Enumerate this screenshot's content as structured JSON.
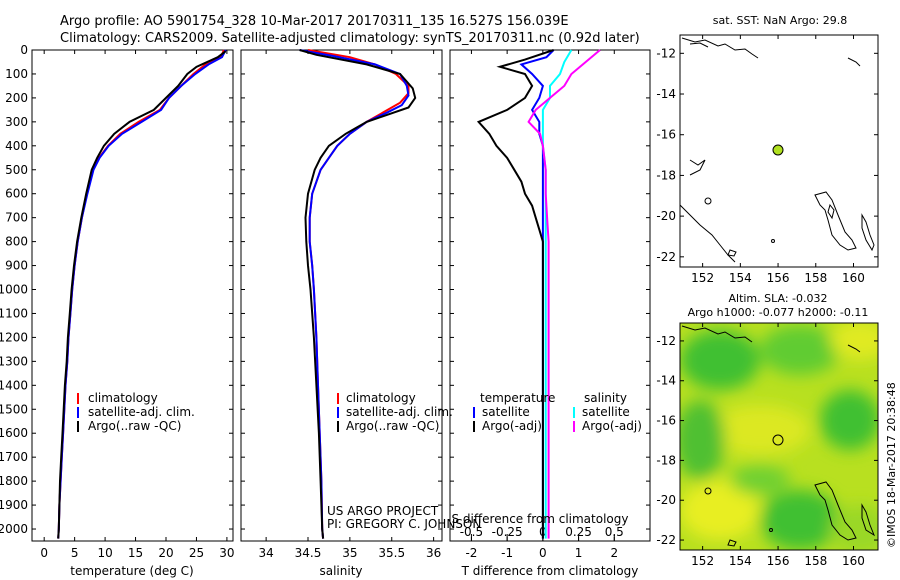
{
  "header": {
    "line1": "Argo profile: AO 5901754_328 10-Mar-2017 20170311_135 16.527S 156.039E",
    "line2": "Climatology: CARS2009. Satellite-adjusted climatology: synTS_20170311.nc (0.92d later)"
  },
  "colors": {
    "climatology": "#ff0000",
    "satellite": "#0000ff",
    "argo": "#000000",
    "satellite_diff": "#00ffff",
    "argo_adj": "#ff00ff",
    "marker": "#b0e020"
  },
  "depth_axis": {
    "range": [
      0,
      2050
    ],
    "ticks": [
      "0",
      "100",
      "200",
      "300",
      "400",
      "500",
      "600",
      "700",
      "800",
      "900",
      "1000",
      "1100",
      "1200",
      "1300",
      "1400",
      "1500",
      "1600",
      "1700",
      "1800",
      "1900",
      "2000"
    ]
  },
  "legends": {
    "climatology": "climatology",
    "satellite_adj": "satellite-adj. clim.",
    "argo_raw": "Argo(..raw -QC)",
    "temperature": "temperature",
    "salinity": "salinity",
    "satellite": "satellite",
    "argo_adj": "Argo(-adj)"
  },
  "annotations": {
    "project": "US ARGO PROJECT",
    "pi": "PI: GREGORY C. JOHNSON",
    "s_diff": "S difference from climatology",
    "t_diff": "T difference from climatology"
  },
  "maps": {
    "sst_title": "sat. SST: NaN Argo: 29.8",
    "sla_title1": "Altim. SLA: -0.032",
    "sla_title2": "Argo h1000: -0.077 h2000: -0.11",
    "lon_ticks": [
      "152",
      "154",
      "156",
      "158",
      "160"
    ],
    "lat_ticks": [
      "-12",
      "-14",
      "-16",
      "-18",
      "-20",
      "-22"
    ],
    "float_lon": 156.039,
    "float_lat": -16.527
  },
  "footer": {
    "credit": "©IMOS 18-Mar-2017 20:38:48"
  },
  "chart_data": [
    {
      "type": "line",
      "xlabel": "temperature (deg C)",
      "ylabel": "",
      "xlim": [
        -2,
        31
      ],
      "ylim": [
        2050,
        0
      ],
      "x_ticks": [
        "0",
        "5",
        "10",
        "15",
        "20",
        "25",
        "30"
      ],
      "series": [
        {
          "name": "climatology",
          "points": [
            [
              29.5,
              0
            ],
            [
              29.0,
              30
            ],
            [
              26.5,
              60
            ],
            [
              24.5,
              100
            ],
            [
              22.5,
              150
            ],
            [
              20.5,
              200
            ],
            [
              19,
              250
            ],
            [
              15.5,
              300
            ],
            [
              12.5,
              350
            ],
            [
              10.5,
              400
            ],
            [
              9,
              450
            ],
            [
              8,
              500
            ],
            [
              7,
              600
            ],
            [
              6.2,
              700
            ],
            [
              5.5,
              800
            ],
            [
              5,
              900
            ],
            [
              4.6,
              1000
            ],
            [
              4.3,
              1100
            ],
            [
              4.0,
              1200
            ],
            [
              3.8,
              1300
            ],
            [
              3.5,
              1400
            ],
            [
              3.3,
              1500
            ],
            [
              3.1,
              1600
            ],
            [
              2.9,
              1700
            ],
            [
              2.7,
              1800
            ],
            [
              2.5,
              1900
            ],
            [
              2.4,
              2000
            ],
            [
              2.3,
              2040
            ]
          ]
        },
        {
          "name": "satellite-adj. clim.",
          "points": [
            [
              29.8,
              0
            ],
            [
              29.2,
              30
            ],
            [
              27,
              60
            ],
            [
              24.8,
              100
            ],
            [
              22.5,
              150
            ],
            [
              20.5,
              200
            ],
            [
              19.2,
              250
            ],
            [
              16,
              300
            ],
            [
              12.8,
              350
            ],
            [
              10.6,
              400
            ],
            [
              9.1,
              450
            ],
            [
              8.1,
              500
            ],
            [
              7.1,
              600
            ],
            [
              6.2,
              700
            ],
            [
              5.5,
              800
            ],
            [
              5,
              900
            ],
            [
              4.6,
              1000
            ],
            [
              4.3,
              1100
            ],
            [
              4.0,
              1200
            ],
            [
              3.8,
              1300
            ],
            [
              3.5,
              1400
            ],
            [
              3.3,
              1500
            ],
            [
              3.1,
              1600
            ],
            [
              2.9,
              1700
            ],
            [
              2.7,
              1800
            ],
            [
              2.5,
              1900
            ],
            [
              2.4,
              2000
            ],
            [
              2.3,
              2040
            ]
          ]
        },
        {
          "name": "Argo(..raw -QC)",
          "points": [
            [
              29.8,
              5
            ],
            [
              28.5,
              30
            ],
            [
              25,
              70
            ],
            [
              23.5,
              100
            ],
            [
              22,
              150
            ],
            [
              20,
              200
            ],
            [
              18,
              250
            ],
            [
              14,
              300
            ],
            [
              11.5,
              350
            ],
            [
              9.8,
              400
            ],
            [
              8.7,
              450
            ],
            [
              7.8,
              500
            ],
            [
              6.9,
              600
            ],
            [
              6.1,
              700
            ],
            [
              5.4,
              800
            ],
            [
              4.9,
              900
            ],
            [
              4.5,
              1000
            ],
            [
              4.2,
              1100
            ],
            [
              3.9,
              1200
            ],
            [
              3.7,
              1300
            ],
            [
              3.4,
              1400
            ],
            [
              3.2,
              1500
            ],
            [
              3.0,
              1600
            ],
            [
              2.8,
              1700
            ],
            [
              2.6,
              1800
            ],
            [
              2.5,
              1900
            ],
            [
              2.4,
              2000
            ],
            [
              2.3,
              2040
            ]
          ]
        }
      ]
    },
    {
      "type": "line",
      "xlabel": "salinity",
      "ylabel": "",
      "xlim": [
        33.7,
        36.1
      ],
      "ylim": [
        2050,
        0
      ],
      "x_ticks": [
        "34",
        "34.5",
        "35",
        "35.5",
        "36"
      ],
      "series": [
        {
          "name": "climatology",
          "points": [
            [
              34.5,
              0
            ],
            [
              35.0,
              30
            ],
            [
              35.3,
              60
            ],
            [
              35.55,
              100
            ],
            [
              35.7,
              150
            ],
            [
              35.7,
              180
            ],
            [
              35.6,
              220
            ],
            [
              35.4,
              260
            ],
            [
              35.2,
              300
            ],
            [
              35.0,
              350
            ],
            [
              34.85,
              400
            ],
            [
              34.75,
              450
            ],
            [
              34.65,
              500
            ],
            [
              34.55,
              600
            ],
            [
              34.52,
              700
            ],
            [
              34.52,
              800
            ],
            [
              34.55,
              900
            ],
            [
              34.57,
              1000
            ],
            [
              34.6,
              1200
            ],
            [
              34.62,
              1400
            ],
            [
              34.64,
              1600
            ],
            [
              34.66,
              1800
            ],
            [
              34.67,
              2000
            ],
            [
              34.68,
              2040
            ]
          ]
        },
        {
          "name": "satellite-adj. clim.",
          "points": [
            [
              34.4,
              0
            ],
            [
              34.8,
              25
            ],
            [
              35.3,
              60
            ],
            [
              35.6,
              100
            ],
            [
              35.68,
              150
            ],
            [
              35.7,
              190
            ],
            [
              35.62,
              230
            ],
            [
              35.45,
              260
            ],
            [
              35.2,
              300
            ],
            [
              35.0,
              350
            ],
            [
              34.85,
              400
            ],
            [
              34.75,
              450
            ],
            [
              34.65,
              500
            ],
            [
              34.55,
              600
            ],
            [
              34.52,
              700
            ],
            [
              34.52,
              800
            ],
            [
              34.55,
              900
            ],
            [
              34.57,
              1000
            ],
            [
              34.6,
              1200
            ],
            [
              34.62,
              1400
            ],
            [
              34.64,
              1600
            ],
            [
              34.66,
              1800
            ],
            [
              34.67,
              2000
            ],
            [
              34.68,
              2040
            ]
          ]
        },
        {
          "name": "Argo(..raw -QC)",
          "points": [
            [
              34.4,
              0
            ],
            [
              34.6,
              20
            ],
            [
              35.2,
              60
            ],
            [
              35.6,
              100
            ],
            [
              35.75,
              160
            ],
            [
              35.78,
              200
            ],
            [
              35.7,
              240
            ],
            [
              35.45,
              270
            ],
            [
              35.2,
              300
            ],
            [
              34.95,
              350
            ],
            [
              34.75,
              400
            ],
            [
              34.65,
              450
            ],
            [
              34.58,
              500
            ],
            [
              34.5,
              600
            ],
            [
              34.47,
              700
            ],
            [
              34.48,
              800
            ],
            [
              34.5,
              900
            ],
            [
              34.53,
              1000
            ],
            [
              34.57,
              1200
            ],
            [
              34.6,
              1400
            ],
            [
              34.63,
              1600
            ],
            [
              34.65,
              1800
            ],
            [
              34.67,
              2000
            ],
            [
              34.68,
              2040
            ]
          ]
        }
      ]
    },
    {
      "type": "line",
      "xlabel": "T difference from climatology",
      "ylabel": "",
      "xlim": [
        -2.6,
        3
      ],
      "ylim": [
        2050,
        0
      ],
      "x_ticks": [
        "-2",
        "-1",
        "0",
        "1",
        "2"
      ],
      "secondary_axis": {
        "label": "S difference from climatology",
        "xlim": [
          -0.65,
          0.75
        ],
        "ticks": [
          "-0.5",
          "-0.25",
          "0",
          "0.25",
          "0.5"
        ]
      },
      "series": [
        {
          "name": "temperature satellite",
          "axis": "T",
          "points": [
            [
              0.3,
              0
            ],
            [
              0.1,
              30
            ],
            [
              -0.6,
              60
            ],
            [
              -0.3,
              100
            ],
            [
              0,
              150
            ],
            [
              -0.1,
              200
            ],
            [
              -0.3,
              250
            ],
            [
              -0.1,
              300
            ],
            [
              -0.1,
              350
            ],
            [
              0,
              400
            ],
            [
              0,
              500
            ],
            [
              0,
              600
            ],
            [
              0,
              800
            ],
            [
              0,
              1000
            ],
            [
              0,
              1500
            ],
            [
              0,
              2040
            ]
          ]
        },
        {
          "name": "temperature Argo(-adj)",
          "axis": "T",
          "points": [
            [
              0.3,
              0
            ],
            [
              -0.5,
              40
            ],
            [
              -1.2,
              70
            ],
            [
              -0.5,
              100
            ],
            [
              -0.3,
              150
            ],
            [
              -0.5,
              200
            ],
            [
              -1.0,
              250
            ],
            [
              -1.8,
              300
            ],
            [
              -1.5,
              350
            ],
            [
              -1.3,
              400
            ],
            [
              -1.0,
              450
            ],
            [
              -0.8,
              500
            ],
            [
              -0.6,
              550
            ],
            [
              -0.5,
              600
            ],
            [
              -0.3,
              650
            ],
            [
              -0.2,
              700
            ],
            [
              -0.1,
              750
            ],
            [
              0,
              800
            ],
            [
              0,
              900
            ],
            [
              0,
              1000
            ],
            [
              0,
              1200
            ],
            [
              0,
              1500
            ],
            [
              0,
              1800
            ],
            [
              0,
              2040
            ]
          ]
        },
        {
          "name": "salinity satellite",
          "axis": "S",
          "points": [
            [
              0.2,
              0
            ],
            [
              0.15,
              50
            ],
            [
              0.12,
              100
            ],
            [
              0.05,
              150
            ],
            [
              0.05,
              200
            ],
            [
              0,
              250
            ],
            [
              0,
              300
            ],
            [
              0,
              400
            ],
            [
              0.02,
              500
            ],
            [
              0.02,
              700
            ],
            [
              0.02,
              1000
            ],
            [
              0.02,
              1500
            ],
            [
              0.02,
              2040
            ]
          ]
        },
        {
          "name": "salinity Argo(-adj)",
          "axis": "S",
          "points": [
            [
              0.4,
              0
            ],
            [
              0.3,
              50
            ],
            [
              0.2,
              100
            ],
            [
              0.15,
              150
            ],
            [
              0.05,
              200
            ],
            [
              -0.05,
              250
            ],
            [
              -0.1,
              300
            ],
            [
              -0.02,
              350
            ],
            [
              0,
              400
            ],
            [
              0.02,
              500
            ],
            [
              0.02,
              600
            ],
            [
              0.03,
              700
            ],
            [
              0.04,
              800
            ],
            [
              0.04,
              1000
            ],
            [
              0.04,
              1500
            ],
            [
              0.04,
              2040
            ]
          ]
        }
      ]
    }
  ]
}
